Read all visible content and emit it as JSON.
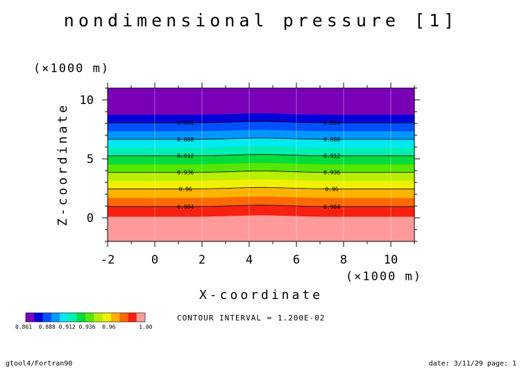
{
  "chart_data": {
    "type": "heatmap",
    "title": "nondimensional pressure [1]",
    "xlabel": "X-coordinate",
    "ylabel": "Z-coordinate",
    "x_unit": "(×1000 m)",
    "y_unit": "(×1000 m)",
    "xlim": [
      -2,
      11
    ],
    "ylim": [
      -2,
      11
    ],
    "x_ticks": [
      "-2",
      "0",
      "2",
      "4",
      "6",
      "8",
      "10"
    ],
    "y_ticks": [
      "0",
      "5",
      "10"
    ],
    "x_tick_values": [
      -2,
      0,
      2,
      4,
      6,
      8,
      10
    ],
    "y_tick_values": [
      0,
      5,
      10
    ],
    "contour_interval_text": "CONTOUR INTERVAL = 1.200E-02",
    "color_bands": [
      {
        "z_from": -2.0,
        "z_to": 0.1,
        "color": "#ff9a9a"
      },
      {
        "z_from": 0.1,
        "z_to": 0.95,
        "color": "#f82010"
      },
      {
        "z_from": 0.95,
        "z_to": 1.7,
        "color": "#ff6a00"
      },
      {
        "z_from": 1.7,
        "z_to": 2.45,
        "color": "#ffb400"
      },
      {
        "z_from": 2.45,
        "z_to": 3.15,
        "color": "#f0f000"
      },
      {
        "z_from": 3.15,
        "z_to": 3.85,
        "color": "#b8ee00"
      },
      {
        "z_from": 3.85,
        "z_to": 4.55,
        "color": "#56e600"
      },
      {
        "z_from": 4.55,
        "z_to": 5.25,
        "color": "#00dc3c"
      },
      {
        "z_from": 5.25,
        "z_to": 5.95,
        "color": "#00eeb0"
      },
      {
        "z_from": 5.95,
        "z_to": 6.65,
        "color": "#00e8f0"
      },
      {
        "z_from": 6.65,
        "z_to": 7.35,
        "color": "#0096ff"
      },
      {
        "z_from": 7.35,
        "z_to": 8.05,
        "color": "#0050ff"
      },
      {
        "z_from": 8.05,
        "z_to": 8.75,
        "color": "#0000d8"
      },
      {
        "z_from": 8.75,
        "z_to": 11.0,
        "color": "#7a00b8"
      }
    ],
    "contours": [
      {
        "z": 0.95,
        "label": "0.984"
      },
      {
        "z": 2.45,
        "label": "0.96"
      },
      {
        "z": 3.85,
        "label": "0.936"
      },
      {
        "z": 5.25,
        "label": "0.912"
      },
      {
        "z": 6.65,
        "label": "0.888"
      },
      {
        "z": 8.05,
        "label": "0.864"
      }
    ],
    "label_x_positions": [
      1.3,
      7.5
    ],
    "colorbar": {
      "colors": [
        "#7a00b8",
        "#0000d8",
        "#0050ff",
        "#0096ff",
        "#00e8f0",
        "#00eeb0",
        "#00dc3c",
        "#56e600",
        "#b8ee00",
        "#f0f000",
        "#ffb400",
        "#ff6a00",
        "#f82010",
        "#ff9a9a"
      ],
      "label_text": "0.861  0.888 0.912 0.936  0.96       1.00"
    }
  },
  "footer": {
    "left": "gtool4/Fortran90",
    "right": "date: 3/11/29 page: 1"
  }
}
